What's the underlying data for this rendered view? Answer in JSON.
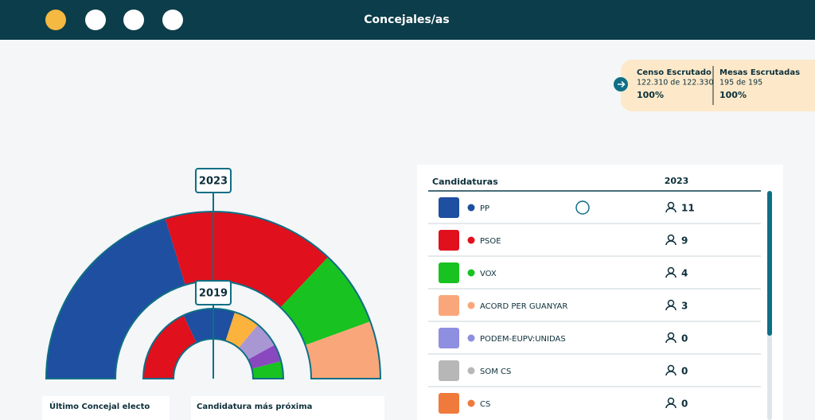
{
  "header": {
    "title": "Concejales/as"
  },
  "scrutiny": {
    "census": {
      "label": "Censo Escrutado",
      "detail": "122.310 de 122.330",
      "percent": "100%"
    },
    "tables": {
      "label": "Mesas Escrutadas",
      "detail": "195 de 195",
      "percent": "100%"
    }
  },
  "hemicycle": {
    "outer_label": "2023",
    "inner_label": "2019",
    "inner_segments": [
      {
        "color": "#e0101d",
        "seats": 9
      },
      {
        "color": "#1e4fa0",
        "seats": 6
      },
      {
        "color": "#fbb33d",
        "seats": 3
      },
      {
        "color": "#a997d4",
        "seats": 3
      },
      {
        "color": "#8a48bf",
        "seats": 2
      },
      {
        "color": "#18c221",
        "seats": 2
      }
    ]
  },
  "table": {
    "header": {
      "party": "Candidaturas",
      "year": "2023"
    },
    "rows": [
      {
        "party": "PP",
        "color": "#1e4fa0",
        "seats": 11
      },
      {
        "party": "PSOE",
        "color": "#e0101d",
        "seats": 9
      },
      {
        "party": "VOX",
        "color": "#18c221",
        "seats": 4
      },
      {
        "party": "ACORD PER GUANYAR",
        "color": "#f9a77a",
        "seats": 3
      },
      {
        "party": "PODEM-EUPV:UNIDAS",
        "color": "#8e8fe0",
        "seats": 0
      },
      {
        "party": "SOM CS",
        "color": "#b7b7b7",
        "seats": 0
      },
      {
        "party": "CS",
        "color": "#ef7a3b",
        "seats": 0
      }
    ]
  },
  "bottom": {
    "last_elected": "Último Concejal electo",
    "closest": "Candidatura más próxima"
  }
}
